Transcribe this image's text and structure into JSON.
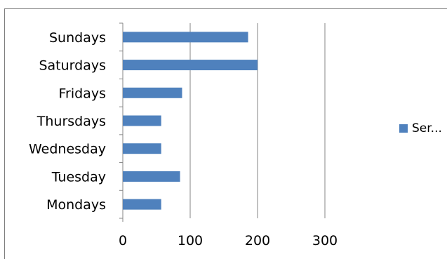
{
  "chart_data": {
    "type": "bar",
    "orientation": "horizontal",
    "title": "",
    "categories": [
      "Mondays",
      "Tuesday",
      "Wednesday",
      "Thursdays",
      "Fridays",
      "Saturdays",
      "Sundays"
    ],
    "series": [
      {
        "name": "Ser...",
        "values": [
          57,
          85,
          57,
          57,
          88,
          200,
          186
        ]
      }
    ],
    "xlabel": "",
    "ylabel": "",
    "xlim": [
      0,
      300
    ],
    "xticks": [
      0,
      100,
      200,
      300
    ],
    "grid": "vertical",
    "legend": "right",
    "bar_color": "#4f81bd",
    "grid_color": "#868686"
  }
}
